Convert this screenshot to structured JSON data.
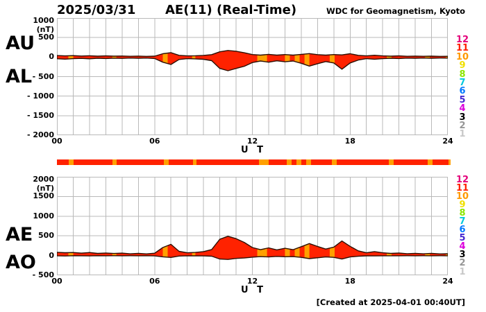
{
  "header": {
    "date": "2025/03/31",
    "title": "AE(11) (Real-Time)",
    "source": "WDC for Geomagnetism, Kyoto"
  },
  "footer": {
    "created": "[Created at 2025-04-01 00:40UT]"
  },
  "labels": {
    "au": "AU",
    "al": "AL",
    "ae": "AE",
    "ao": "AO"
  },
  "colors": {
    "trace_fill_11_stations": "#ff2200",
    "trace_fill_10_stations": "#ffa000",
    "trace_outline": "#2b0e00",
    "grid": "#b9b9b9",
    "text": "#000000"
  },
  "legend_station_counts": [
    {
      "label": "12",
      "color": "#e4007b"
    },
    {
      "label": "11",
      "color": "#ff2200"
    },
    {
      "label": "10",
      "color": "#ff9900"
    },
    {
      "label": "9",
      "color": "#f0e000"
    },
    {
      "label": "8",
      "color": "#8ce600"
    },
    {
      "label": "7",
      "color": "#00c8dc"
    },
    {
      "label": "6",
      "color": "#0078ff"
    },
    {
      "label": "5",
      "color": "#4628d2"
    },
    {
      "label": "4",
      "color": "#dc00dc"
    },
    {
      "label": "3",
      "color": "#000000"
    },
    {
      "label": "2",
      "color": "#969696"
    },
    {
      "label": "1",
      "color": "#c8c8c8"
    }
  ],
  "station_bar": {
    "default_count": 11,
    "reduced_count": 10,
    "reduced_hours": [
      [
        0.7,
        1.0
      ],
      [
        3.4,
        3.65
      ],
      [
        6.5,
        6.8
      ],
      [
        8.3,
        8.5
      ],
      [
        12.3,
        12.9
      ],
      [
        14.0,
        14.3
      ],
      [
        14.6,
        14.9
      ],
      [
        15.2,
        15.5
      ],
      [
        16.75,
        17.05
      ],
      [
        20.25,
        20.55
      ],
      [
        22.6,
        22.9
      ],
      [
        23.87,
        24.0
      ]
    ]
  },
  "chart_data": [
    {
      "type": "area",
      "panel": "AU / AL auroral electrojet indices",
      "xlabel": "U T",
      "unit": "(nT)",
      "x_start_hour": 0,
      "x_end_hour": 24,
      "x_step_hours": 0.5,
      "xtick_hours": [
        0,
        6,
        12,
        18,
        24
      ],
      "xtick_labels": [
        "00",
        "06",
        "12",
        "18",
        "24"
      ],
      "ylim": [
        -2000,
        1000
      ],
      "ytick_values": [
        1000,
        500,
        0,
        -500,
        -1000,
        -1500,
        -2000
      ],
      "ytick_labels": [
        "1000",
        "500",
        "0",
        "- 500",
        "- 1000",
        "- 1500",
        "- 2000"
      ],
      "grid": true,
      "series": [
        {
          "name": "AU",
          "values": [
            40,
            30,
            38,
            28,
            34,
            24,
            30,
            24,
            28,
            20,
            26,
            18,
            24,
            85,
            115,
            45,
            30,
            34,
            44,
            62,
            135,
            170,
            150,
            110,
            65,
            50,
            70,
            50,
            64,
            50,
            70,
            90,
            62,
            50,
            64,
            55,
            85,
            45,
            30,
            46,
            30,
            24,
            30,
            20,
            26,
            20,
            24,
            18,
            20
          ]
        },
        {
          "name": "AL",
          "values": [
            -42,
            -52,
            -40,
            -34,
            -44,
            -30,
            -36,
            -28,
            -34,
            -24,
            -30,
            -24,
            -36,
            -130,
            -190,
            -62,
            -40,
            -46,
            -56,
            -92,
            -290,
            -350,
            -290,
            -235,
            -140,
            -100,
            -130,
            -95,
            -120,
            -100,
            -160,
            -230,
            -170,
            -115,
            -150,
            -310,
            -150,
            -75,
            -40,
            -55,
            -40,
            -30,
            -36,
            -26,
            -30,
            -24,
            -30,
            -24,
            -26
          ]
        }
      ]
    },
    {
      "type": "area",
      "panel": "AE / AO auroral electrojet indices",
      "xlabel": "U T",
      "unit": "(nT)",
      "x_start_hour": 0,
      "x_end_hour": 24,
      "x_step_hours": 0.5,
      "xtick_hours": [
        0,
        6,
        12,
        18,
        24
      ],
      "xtick_labels": [
        "00",
        "06",
        "12",
        "18",
        "24"
      ],
      "ylim": [
        -500,
        2000
      ],
      "ytick_values": [
        2000,
        1500,
        1000,
        500,
        0,
        -500
      ],
      "ytick_labels": [
        "2000",
        "1500",
        "1000",
        "500",
        "0",
        "- 500"
      ],
      "grid": true,
      "series": [
        {
          "name": "AE",
          "values": [
            82,
            72,
            78,
            62,
            78,
            54,
            66,
            52,
            62,
            44,
            56,
            42,
            60,
            205,
            285,
            107,
            70,
            80,
            100,
            154,
            415,
            490,
            430,
            335,
            205,
            150,
            195,
            145,
            184,
            150,
            225,
            305,
            232,
            165,
            214,
            370,
            235,
            120,
            70,
            100,
            70,
            54,
            66,
            48,
            56,
            44,
            56,
            42,
            46
          ]
        },
        {
          "name": "AO",
          "values": [
            -6,
            -10,
            -4,
            -6,
            -8,
            -4,
            -6,
            -4,
            -6,
            -4,
            -5,
            -4,
            -8,
            -32,
            -48,
            -12,
            -6,
            -7,
            -9,
            -16,
            -88,
            -98,
            -72,
            -62,
            -40,
            -26,
            -36,
            -22,
            -30,
            -26,
            -46,
            -78,
            -56,
            -36,
            -46,
            -88,
            -36,
            -18,
            -7,
            -9,
            -6,
            -5,
            -6,
            -4,
            -5,
            -4,
            -5,
            -4,
            -5
          ]
        }
      ]
    }
  ]
}
